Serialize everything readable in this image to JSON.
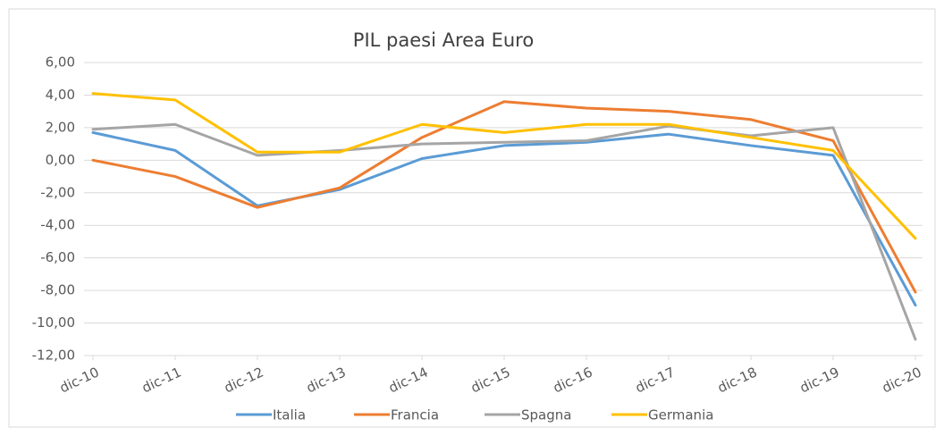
{
  "chart_data": {
    "type": "line",
    "title": "PIL paesi Area Euro",
    "categories": [
      "dic-10",
      "dic-11",
      "dic-12",
      "dic-13",
      "dic-14",
      "dic-15",
      "dic-16",
      "dic-17",
      "dic-18",
      "dic-19",
      "dic-20"
    ],
    "series": [
      {
        "name": "Italia",
        "color": "#5b9bd5",
        "values": [
          1.7,
          0.6,
          -2.8,
          -1.8,
          0.1,
          0.9,
          1.1,
          1.6,
          0.9,
          0.3,
          -8.9
        ]
      },
      {
        "name": "Francia",
        "color": "#ed7d31",
        "values": [
          0.0,
          -1.0,
          -2.9,
          -1.7,
          1.4,
          3.6,
          3.2,
          3.0,
          2.5,
          1.2,
          -8.1
        ]
      },
      {
        "name": "Spagna",
        "color": "#a5a5a5",
        "values": [
          1.9,
          2.2,
          0.3,
          0.6,
          1.0,
          1.1,
          1.2,
          2.1,
          1.5,
          2.0,
          -11.0
        ]
      },
      {
        "name": "Germania",
        "color": "#ffc000",
        "values": [
          4.1,
          3.7,
          0.5,
          0.5,
          2.2,
          1.7,
          2.2,
          2.2,
          1.4,
          0.6,
          -4.8
        ]
      }
    ],
    "ylim": [
      -12,
      6
    ],
    "yticks": [
      {
        "value": -12,
        "label": "-12,00"
      },
      {
        "value": -10,
        "label": "-10,00"
      },
      {
        "value": -8,
        "label": "-8,00"
      },
      {
        "value": -6,
        "label": "-6,00"
      },
      {
        "value": -4,
        "label": "-4,00"
      },
      {
        "value": -2,
        "label": "-2,00"
      },
      {
        "value": 0,
        "label": "0,00"
      },
      {
        "value": 2,
        "label": "2,00"
      },
      {
        "value": 4,
        "label": "4,00"
      },
      {
        "value": 6,
        "label": "6,00"
      }
    ],
    "grid": true,
    "legend": "bottom"
  }
}
